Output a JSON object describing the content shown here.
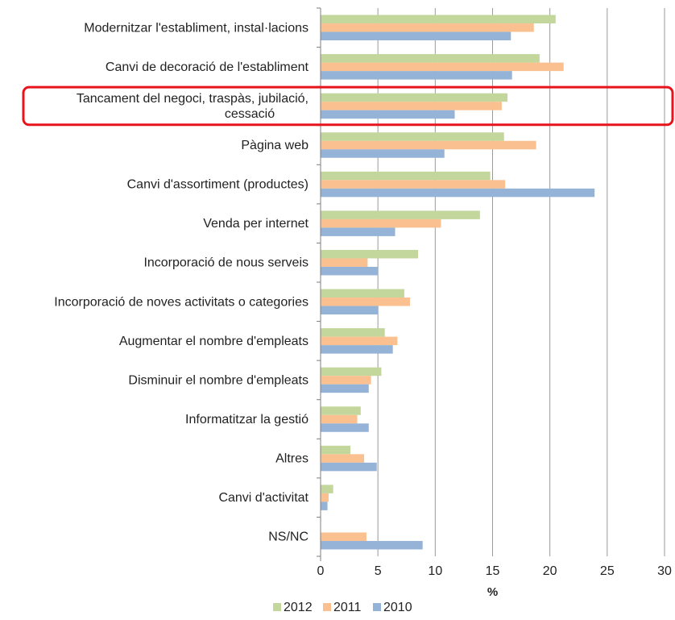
{
  "chart_data": {
    "type": "bar",
    "orientation": "horizontal",
    "xlabel": "%",
    "xlim": [
      0,
      30
    ],
    "xticks": [
      0,
      5,
      10,
      15,
      20,
      25,
      30
    ],
    "grid": true,
    "legend_position": "bottom",
    "highlighted_category": 2,
    "highlight_color": "#e8141c",
    "categories": [
      [
        "Modernitzar l'establiment, instal·lacions"
      ],
      [
        "Canvi de decoració de l'establiment"
      ],
      [
        "Tancament del negoci, traspàs, jubilació,",
        "cessació"
      ],
      [
        "Pàgina web"
      ],
      [
        "Canvi d'assortiment (productes)"
      ],
      [
        "Venda per internet"
      ],
      [
        "Incorporació de nous serveis"
      ],
      [
        "Incorporació de noves activitats o categories"
      ],
      [
        "Augmentar el nombre d'empleats"
      ],
      [
        "Disminuir el nombre d'empleats"
      ],
      [
        "Informatitzar la gestió"
      ],
      [
        "Altres"
      ],
      [
        "Canvi d'activitat"
      ],
      [
        "NS/NC"
      ]
    ],
    "series": [
      {
        "name": "2012",
        "color": "#c3d69b",
        "values": [
          20.5,
          19.1,
          16.3,
          16.0,
          14.8,
          13.9,
          8.5,
          7.3,
          5.6,
          5.3,
          3.5,
          2.6,
          1.1,
          0.0
        ]
      },
      {
        "name": "2011",
        "color": "#fac090",
        "values": [
          18.6,
          21.2,
          15.8,
          18.8,
          16.1,
          10.5,
          4.1,
          7.8,
          6.7,
          4.4,
          3.2,
          3.8,
          0.7,
          4.0
        ]
      },
      {
        "name": "2010",
        "color": "#95b3d7",
        "values": [
          16.6,
          16.7,
          11.7,
          10.8,
          23.9,
          6.5,
          5.0,
          5.0,
          6.3,
          4.2,
          4.2,
          4.9,
          0.6,
          8.9
        ]
      }
    ]
  }
}
